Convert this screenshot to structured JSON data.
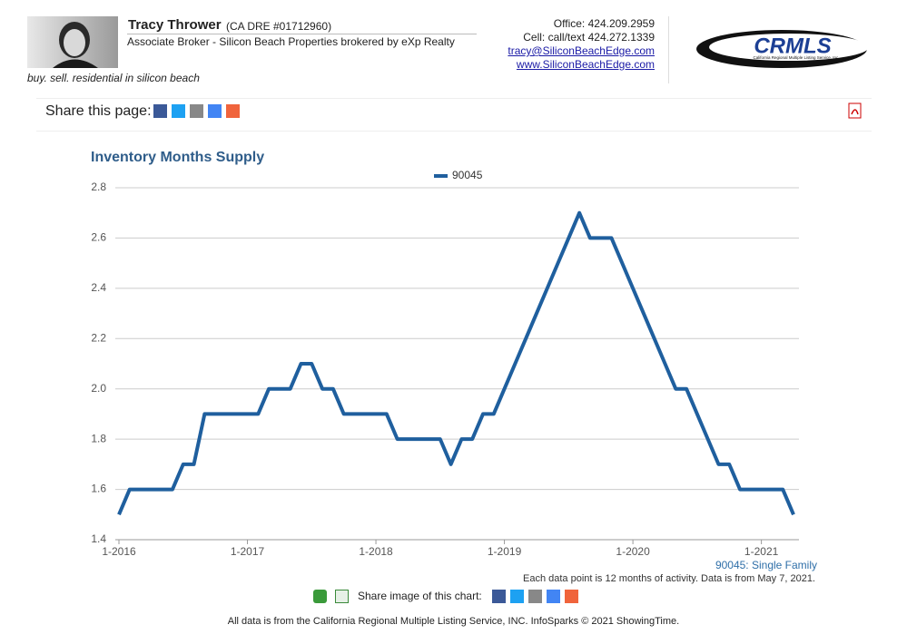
{
  "header": {
    "name": "Tracy Thrower",
    "license": "(CA DRE #01712960)",
    "role": "Associate Broker - Silicon Beach Properties brokered by eXp Realty",
    "tagline": "buy. sell. residential in silicon beach",
    "office": "Office: 424.209.2959",
    "cell": "Cell: call/text 424.272.1339",
    "email": "tracy@SiliconBeachEdge.com",
    "website": "www.SiliconBeachEdge.com",
    "logo": "CRMLS",
    "logo_caption": "California Regional Multiple Listing Service, Inc."
  },
  "share": {
    "label": "Share this page:"
  },
  "chart_data": {
    "type": "line",
    "title": "Inventory Months Supply",
    "categories": [
      "1-2016",
      null,
      null,
      null,
      null,
      null,
      null,
      null,
      null,
      null,
      null,
      null,
      "1-2017",
      null,
      null,
      null,
      null,
      null,
      null,
      null,
      null,
      null,
      null,
      null,
      "1-2018",
      null,
      null,
      null,
      null,
      null,
      null,
      null,
      null,
      null,
      null,
      null,
      "1-2019",
      null,
      null,
      null,
      null,
      null,
      null,
      null,
      null,
      null,
      null,
      null,
      "1-2020",
      null,
      null,
      null,
      null,
      null,
      null,
      null,
      null,
      null,
      null,
      null,
      "1-2021",
      null,
      null,
      null
    ],
    "series": [
      {
        "name": "90045",
        "color": "#1f5f9e",
        "values": [
          1.5,
          1.6,
          1.6,
          1.6,
          1.6,
          1.6,
          1.7,
          1.7,
          1.9,
          1.9,
          1.9,
          1.9,
          1.9,
          1.9,
          2.0,
          2.0,
          2.0,
          2.1,
          2.1,
          2.0,
          2.0,
          1.9,
          1.9,
          1.9,
          1.9,
          1.9,
          1.8,
          1.8,
          1.8,
          1.8,
          1.8,
          1.7,
          1.8,
          1.8,
          1.9,
          1.9,
          2.0,
          2.1,
          2.2,
          2.3,
          2.4,
          2.5,
          2.6,
          2.7,
          2.6,
          2.6,
          2.6,
          2.5,
          2.4,
          2.3,
          2.2,
          2.1,
          2.0,
          2.0,
          1.9,
          1.8,
          1.7,
          1.7,
          1.6,
          1.6,
          1.6,
          1.6,
          1.6,
          1.5
        ]
      }
    ],
    "ylim": [
      1.4,
      2.8
    ],
    "yticks": [
      1.4,
      1.6,
      1.8,
      {
        "value": 2.0,
        "label": "2.0"
      },
      2.2,
      2.4,
      2.6,
      2.8
    ],
    "grid": true,
    "legend": "top",
    "series_note": "90045: Single Family",
    "footnote": "Each data point is 12 months of activity. Data is from May 7, 2021.",
    "share_image_label": "Share image of this chart:"
  },
  "footer": "All data is from the California Regional Multiple Listing Service, INC. InfoSparks © 2021 ShowingTime."
}
